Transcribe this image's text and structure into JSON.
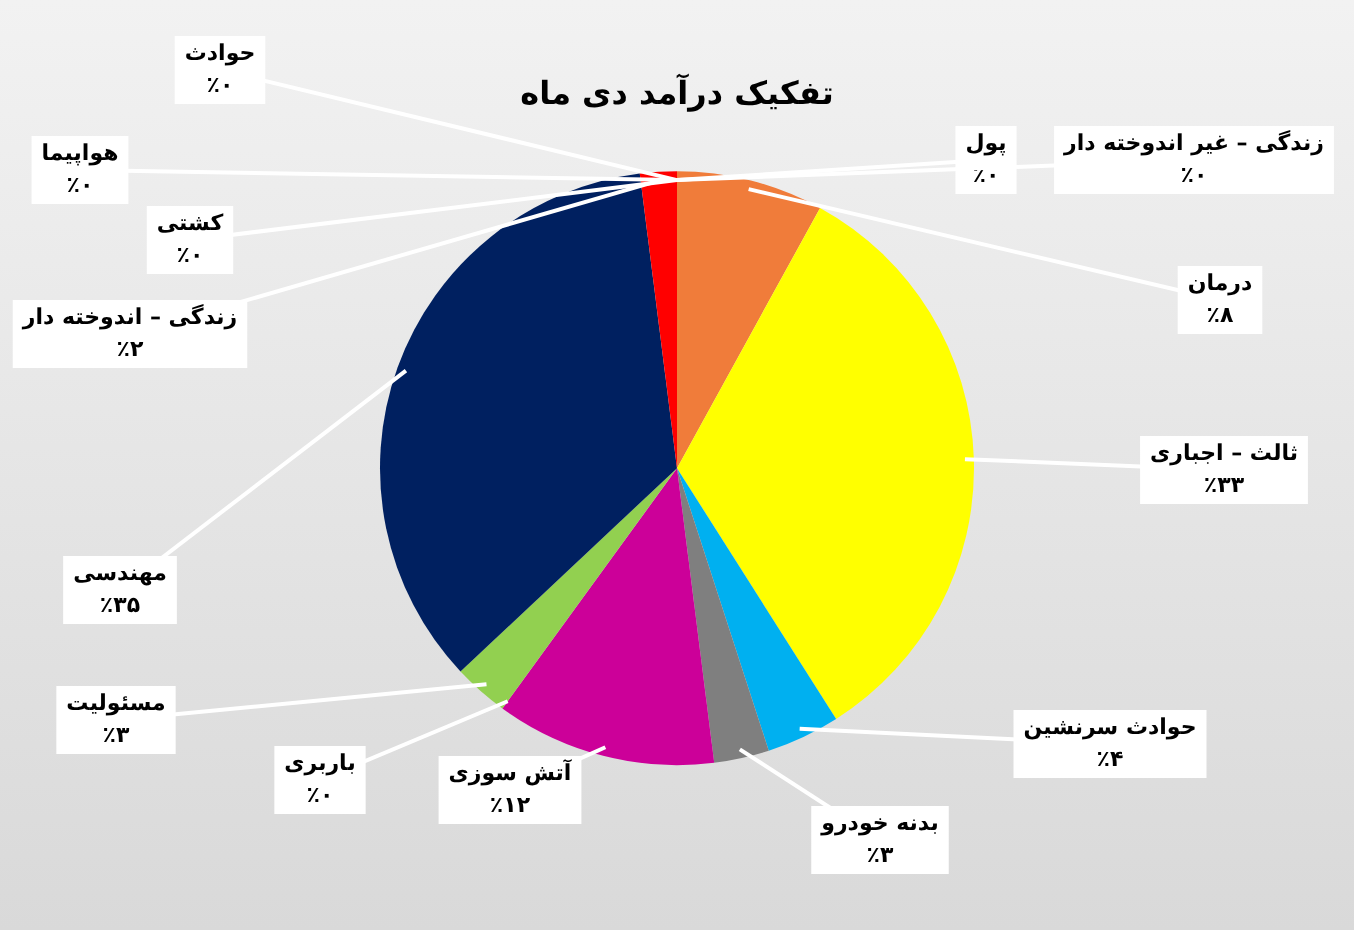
{
  "chart_data": {
    "type": "pie",
    "title": "تفکیک درآمد دی ماه",
    "categories": [
      "پول",
      "زندگی – غیر اندوخته دار",
      "درمان",
      "ثالث – اجباری",
      "حوادث سرنشین",
      "بدنه خودرو",
      "آتش سوزی",
      "باربری",
      "مسئولیت",
      "مهندسی",
      "زندگی – اندوخته دار",
      "کشتی",
      "هواپیما",
      "حوادث"
    ],
    "values": [
      0,
      0,
      8,
      33,
      4,
      3,
      12,
      0,
      3,
      35,
      2,
      0,
      0,
      0
    ],
    "value_labels": [
      "٪۰",
      "٪۰",
      "٪۸",
      "٪۳۳",
      "٪۴",
      "٪۳",
      "٪۱۲",
      "٪۰",
      "٪۳",
      "٪۳۵",
      "٪۲",
      "٪۰",
      "٪۰",
      "٪۰"
    ],
    "colors": [
      "#f4b183",
      "#fbe5d6",
      "#f07c3a",
      "#ffff00",
      "#00b0f0",
      "#7f7f7f",
      "#cc0099",
      "#5b9bd5",
      "#92d050",
      "#002060",
      "#ff0000",
      "#a9d18e",
      "#c00000",
      "#ffc000"
    ],
    "legend": false
  }
}
